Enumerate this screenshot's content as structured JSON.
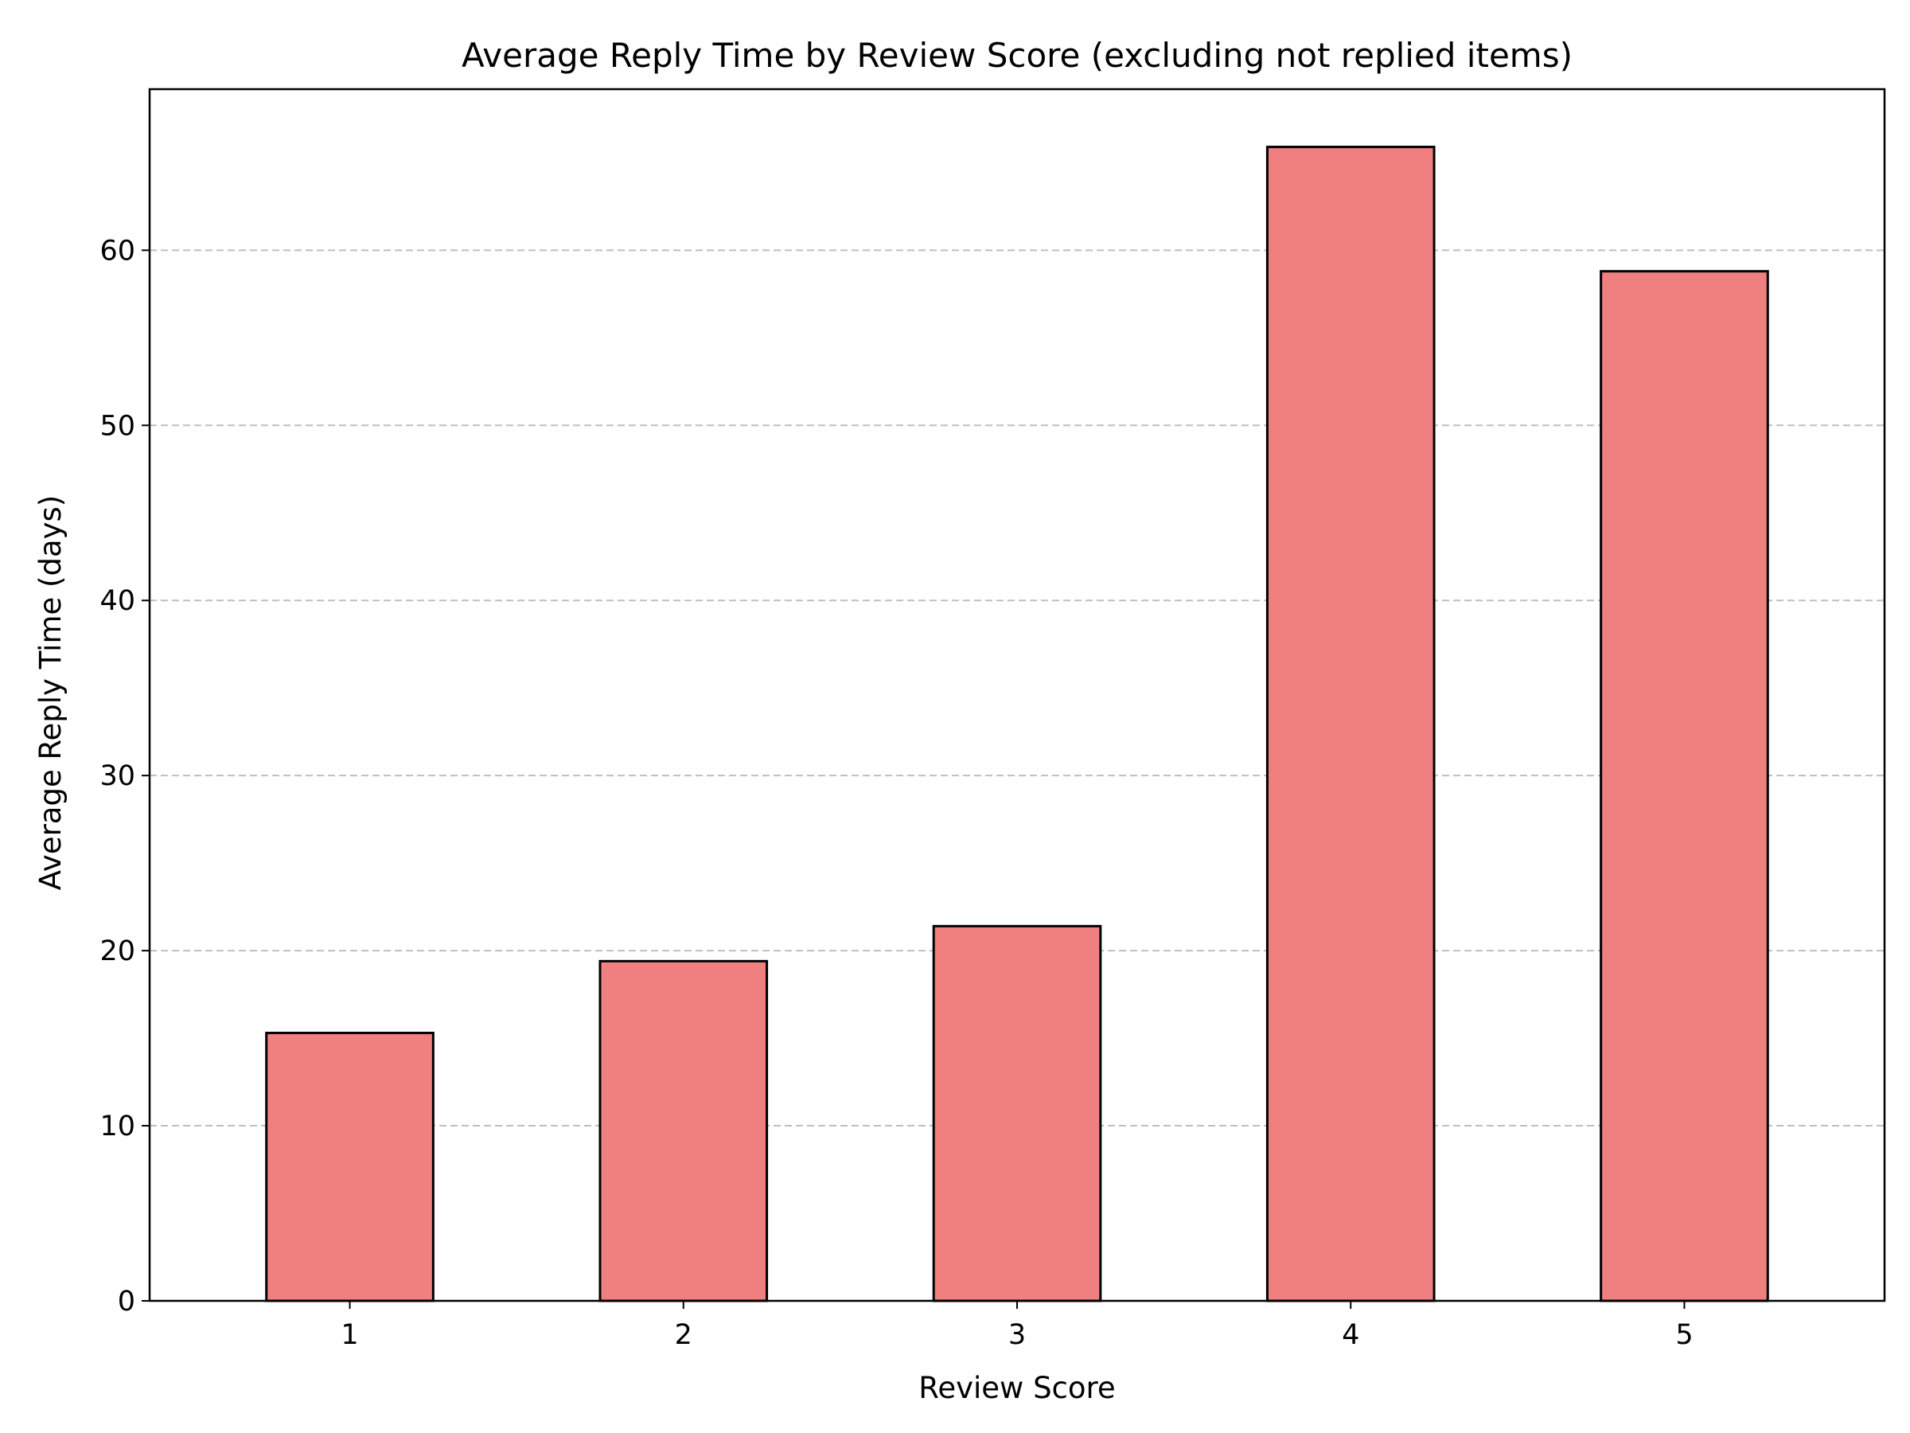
{
  "chart_data": {
    "type": "bar",
    "title": "Average Reply Time by Review Score (excluding not replied items)",
    "xlabel": "Review Score",
    "ylabel": "Average Reply Time (days)",
    "categories": [
      "1",
      "2",
      "3",
      "4",
      "5"
    ],
    "values": [
      15.3,
      19.4,
      21.4,
      65.9,
      58.8
    ],
    "ylim": [
      0,
      69.2
    ],
    "yticks": [
      0,
      10,
      20,
      30,
      40,
      50,
      60
    ],
    "grid": {
      "y": true,
      "x": false,
      "style": "dashed"
    },
    "legend": "none",
    "colors": {
      "bar_fill": "#f08080",
      "bar_edge": "#000000",
      "grid": "#bfbfbf"
    }
  }
}
